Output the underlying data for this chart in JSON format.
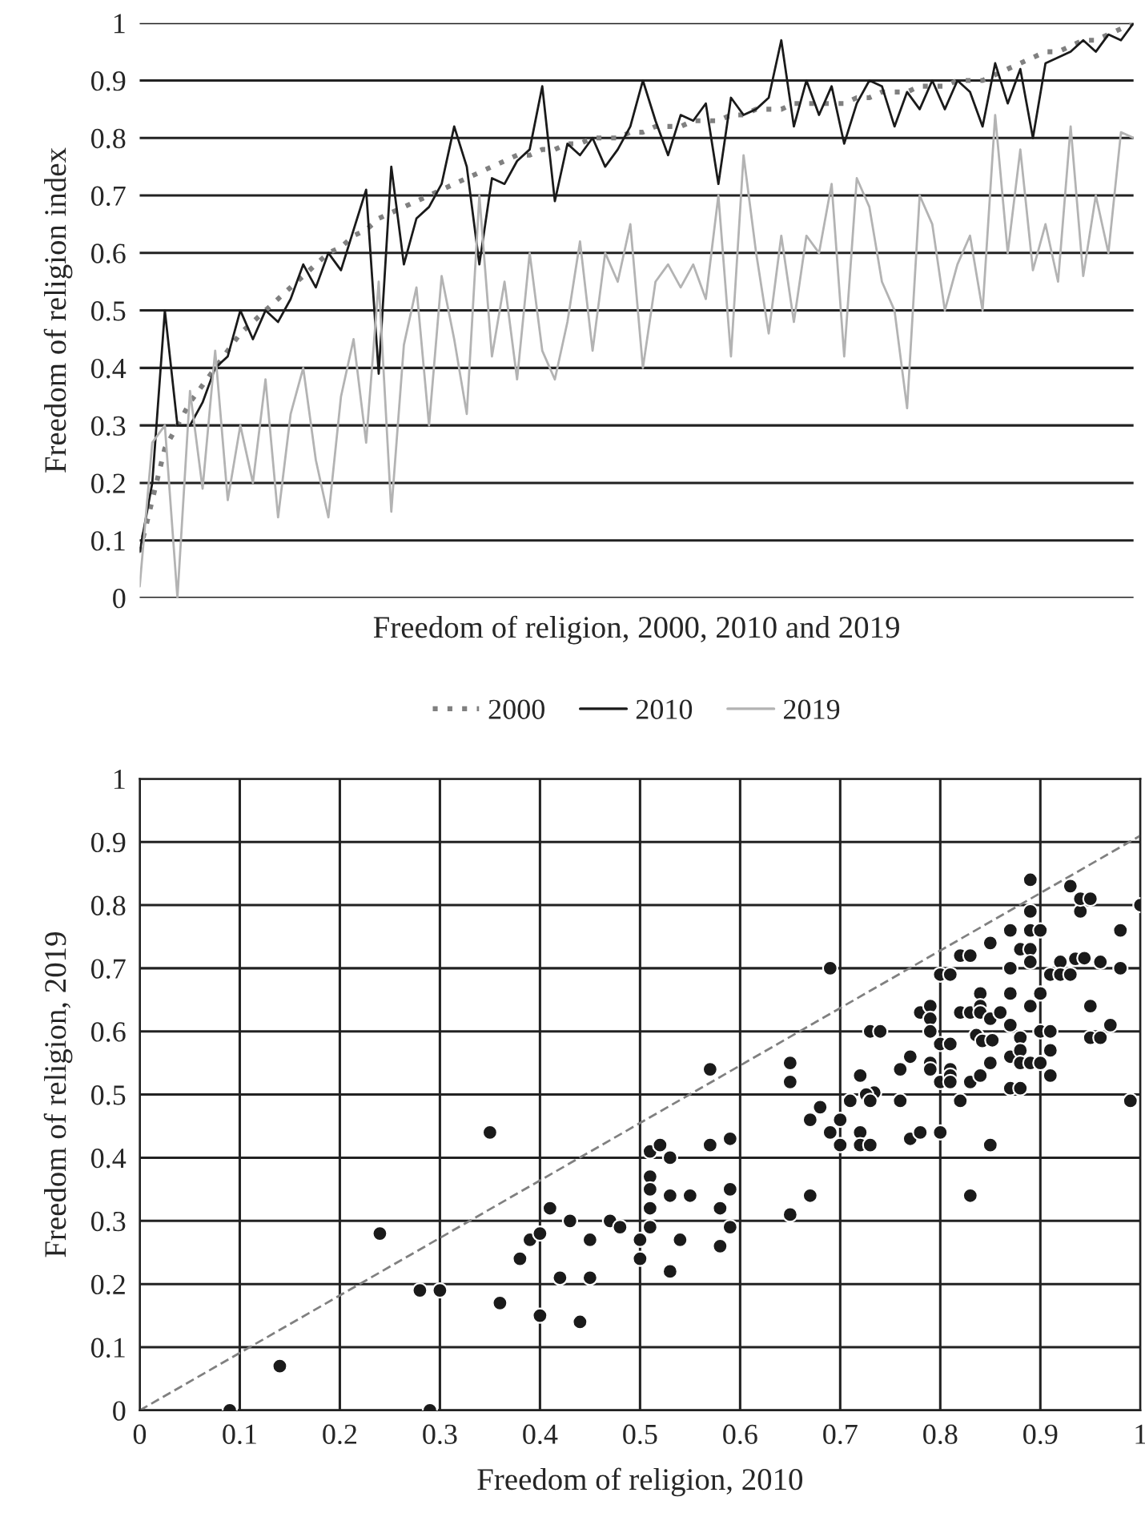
{
  "chart_data": [
    {
      "type": "line",
      "xlabel": "Freedom of religion, 2000, 2010 and 2019",
      "ylabel": "Freedom of religion index",
      "categories": [
        null,
        null,
        null,
        null,
        null,
        null,
        null,
        null,
        null,
        null,
        null,
        null,
        null,
        null,
        null,
        null,
        null,
        null,
        null,
        null,
        null,
        null,
        null,
        null,
        null,
        null,
        null,
        null,
        null,
        null,
        null,
        null,
        null,
        null,
        null,
        null,
        null,
        null,
        null,
        null,
        null,
        null,
        null,
        null,
        null,
        null,
        null,
        null,
        null,
        null,
        null,
        null,
        null,
        null,
        null,
        null,
        null,
        null,
        null,
        null,
        null,
        null,
        null,
        null,
        null,
        null,
        null,
        null,
        null,
        null,
        null,
        null,
        null,
        null,
        null,
        null,
        null,
        null,
        null,
        null
      ],
      "series": [
        {
          "name": "2000",
          "color": "#808080",
          "line_style": "dotted",
          "values": [
            0.08,
            0.17,
            0.26,
            0.3,
            0.34,
            0.37,
            0.4,
            0.43,
            0.46,
            0.48,
            0.5,
            0.52,
            0.54,
            0.56,
            0.58,
            0.6,
            0.61,
            0.63,
            0.64,
            0.66,
            0.67,
            0.68,
            0.69,
            0.7,
            0.71,
            0.72,
            0.73,
            0.74,
            0.75,
            0.76,
            0.77,
            0.77,
            0.78,
            0.78,
            0.79,
            0.79,
            0.8,
            0.8,
            0.8,
            0.81,
            0.81,
            0.82,
            0.82,
            0.82,
            0.83,
            0.83,
            0.83,
            0.84,
            0.84,
            0.85,
            0.85,
            0.85,
            0.86,
            0.86,
            0.86,
            0.86,
            0.86,
            0.87,
            0.87,
            0.88,
            0.88,
            0.88,
            0.89,
            0.89,
            0.89,
            0.9,
            0.9,
            0.9,
            0.91,
            0.92,
            0.93,
            0.94,
            0.95,
            0.95,
            0.96,
            0.97,
            0.97,
            0.98,
            0.99,
            1.0
          ]
        },
        {
          "name": "2010",
          "color": "#1a1a1a",
          "line_style": "solid",
          "values": [
            0.08,
            0.2,
            0.5,
            0.3,
            0.3,
            0.34,
            0.4,
            0.42,
            0.5,
            0.45,
            0.5,
            0.48,
            0.52,
            0.58,
            0.54,
            0.6,
            0.57,
            0.64,
            0.71,
            0.39,
            0.75,
            0.58,
            0.66,
            0.68,
            0.72,
            0.82,
            0.75,
            0.58,
            0.73,
            0.72,
            0.76,
            0.78,
            0.89,
            0.69,
            0.79,
            0.77,
            0.8,
            0.75,
            0.78,
            0.82,
            0.9,
            0.83,
            0.77,
            0.84,
            0.83,
            0.86,
            0.72,
            0.87,
            0.84,
            0.85,
            0.87,
            0.97,
            0.82,
            0.9,
            0.84,
            0.89,
            0.79,
            0.86,
            0.9,
            0.89,
            0.82,
            0.88,
            0.85,
            0.9,
            0.85,
            0.9,
            0.88,
            0.82,
            0.93,
            0.86,
            0.92,
            0.8,
            0.93,
            0.94,
            0.95,
            0.97,
            0.95,
            0.98,
            0.97,
            1.0
          ]
        },
        {
          "name": "2019",
          "color": "#b3b3b3",
          "line_style": "solid",
          "values": [
            0.02,
            0.27,
            0.3,
            0.0,
            0.36,
            0.19,
            0.43,
            0.17,
            0.3,
            0.2,
            0.38,
            0.14,
            0.32,
            0.4,
            0.24,
            0.14,
            0.35,
            0.45,
            0.27,
            0.55,
            0.15,
            0.44,
            0.54,
            0.3,
            0.56,
            0.45,
            0.32,
            0.7,
            0.42,
            0.55,
            0.38,
            0.6,
            0.43,
            0.38,
            0.48,
            0.62,
            0.43,
            0.6,
            0.55,
            0.65,
            0.4,
            0.55,
            0.58,
            0.54,
            0.58,
            0.52,
            0.7,
            0.42,
            0.77,
            0.6,
            0.46,
            0.63,
            0.48,
            0.63,
            0.6,
            0.72,
            0.42,
            0.73,
            0.68,
            0.55,
            0.5,
            0.33,
            0.7,
            0.65,
            0.5,
            0.58,
            0.63,
            0.5,
            0.84,
            0.6,
            0.78,
            0.57,
            0.65,
            0.55,
            0.82,
            0.56,
            0.7,
            0.6,
            0.81,
            0.8
          ]
        }
      ],
      "ylim": [
        0,
        1
      ],
      "yticks": [
        0,
        0.1,
        0.2,
        0.3,
        0.4,
        0.5,
        0.6,
        0.7,
        0.8,
        0.9,
        1
      ],
      "grid": "y",
      "legend": "bottom",
      "tick_labels": "y"
    },
    {
      "type": "scatter",
      "xlabel": "Freedom of religion, 2010",
      "ylabel": "Freedom of religion, 2019",
      "xlim": [
        0,
        1
      ],
      "xticks": [
        0,
        0.1,
        0.2,
        0.3,
        0.4,
        0.5,
        0.6,
        0.7,
        0.8,
        0.9,
        1
      ],
      "ylim": [
        0,
        1
      ],
      "yticks": [
        0,
        0.1,
        0.2,
        0.3,
        0.4,
        0.5,
        0.6,
        0.7,
        0.8,
        0.9,
        1
      ],
      "grid": true,
      "marker": "circle",
      "series": [
        {
          "type": "scatter",
          "color": "#1a1a1a",
          "x": [
            0.09,
            0.14,
            0.24,
            0.28,
            0.3,
            0.29,
            0.35,
            0.36,
            0.38,
            0.39,
            0.4,
            0.4,
            0.41,
            0.42,
            0.43,
            0.44,
            0.45,
            0.45,
            0.47,
            0.48,
            0.5,
            0.5,
            0.51,
            0.52,
            0.53,
            0.51,
            0.51,
            0.51,
            0.53,
            0.51,
            0.54,
            0.53,
            0.55,
            0.57,
            0.57,
            0.58,
            0.58,
            0.59,
            0.59,
            0.59,
            0.65,
            0.65,
            0.65,
            0.67,
            0.67,
            0.68,
            0.69,
            0.69,
            0.7,
            0.7,
            0.71,
            0.72,
            0.72,
            0.72,
            0.734,
            0.726,
            0.73,
            0.73,
            0.73,
            0.74,
            0.76,
            0.76,
            0.77,
            0.77,
            0.78,
            0.78,
            0.79,
            0.79,
            0.79,
            0.79,
            0.79,
            0.8,
            0.8,
            0.8,
            0.8,
            0.81,
            0.81,
            0.81,
            0.81,
            0.81,
            0.82,
            0.82,
            0.83,
            0.82,
            0.83,
            0.83,
            0.83,
            0.84,
            0.84,
            0.84,
            0.84,
            0.85,
            0.85,
            0.86,
            0.836,
            0.842,
            0.852,
            0.85,
            0.85,
            0.87,
            0.87,
            0.87,
            0.87,
            0.87,
            0.87,
            0.88,
            0.88,
            0.89,
            0.89,
            0.89,
            0.9,
            0.89,
            0.89,
            0.89,
            0.88,
            0.88,
            0.88,
            0.89,
            0.9,
            0.9,
            0.9,
            0.91,
            0.91,
            0.91,
            0.91,
            0.92,
            0.92,
            0.93,
            0.935,
            0.944,
            0.93,
            0.94,
            0.94,
            0.95,
            0.95,
            0.95,
            0.96,
            0.97,
            0.96,
            0.98,
            0.98,
            1.0,
            0.99
          ],
          "values": [
            0,
            0.07,
            0.28,
            0.19,
            0.19,
            0,
            0.44,
            0.17,
            0.24,
            0.27,
            0.15,
            0.28,
            0.32,
            0.21,
            0.3,
            0.14,
            0.27,
            0.21,
            0.3,
            0.29,
            0.27,
            0.24,
            0.41,
            0.42,
            0.4,
            0.37,
            0.35,
            0.32,
            0.34,
            0.29,
            0.27,
            0.22,
            0.34,
            0.54,
            0.42,
            0.32,
            0.26,
            0.35,
            0.43,
            0.29,
            0.55,
            0.52,
            0.31,
            0.34,
            0.46,
            0.48,
            0.7,
            0.44,
            0.42,
            0.46,
            0.49,
            0.44,
            0.42,
            0.53,
            0.503,
            0.5,
            0.49,
            0.42,
            0.6,
            0.6,
            0.54,
            0.49,
            0.56,
            0.43,
            0.44,
            0.63,
            0.64,
            0.62,
            0.6,
            0.55,
            0.54,
            0.52,
            0.69,
            0.44,
            0.58,
            0.58,
            0.54,
            0.53,
            0.52,
            0.69,
            0.49,
            0.72,
            0.72,
            0.63,
            0.63,
            0.52,
            0.34,
            0.53,
            0.66,
            0.64,
            0.63,
            0.74,
            0.62,
            0.63,
            0.594,
            0.585,
            0.586,
            0.55,
            0.42,
            0.66,
            0.76,
            0.7,
            0.61,
            0.56,
            0.51,
            0.51,
            0.73,
            0.84,
            0.79,
            0.76,
            0.76,
            0.73,
            0.71,
            0.64,
            0.59,
            0.57,
            0.55,
            0.55,
            0.6,
            0.66,
            0.55,
            0.53,
            0.57,
            0.6,
            0.69,
            0.71,
            0.69,
            0.69,
            0.715,
            0.716,
            0.83,
            0.79,
            0.81,
            0.81,
            0.64,
            0.59,
            0.59,
            0.61,
            0.71,
            0.76,
            0.7,
            0.8,
            0.49
          ]
        },
        {
          "type": "line",
          "color": "#808080",
          "line_style": "dashed",
          "marker": "none",
          "x": [
            0,
            1
          ],
          "values": [
            0,
            0.91
          ]
        }
      ]
    }
  ]
}
